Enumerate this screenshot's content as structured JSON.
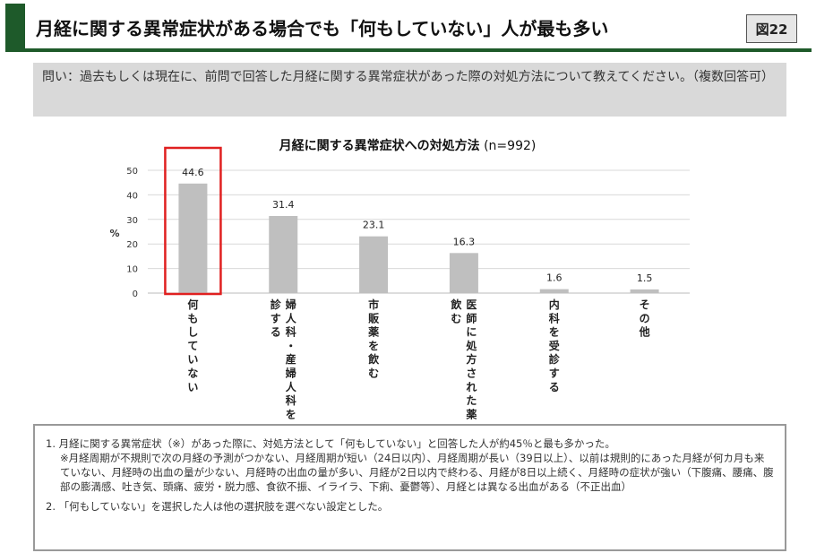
{
  "header": {
    "title": "月経に関する異常症状がある場合でも「何もしていない」人が最も多い",
    "fig_tag": "図22"
  },
  "question": "問い：過去もしくは現在に、前問で回答した月経に関する異常症状があった際の対処方法について教えてください。（複数回答可）",
  "colors": {
    "bar": "#bfbfbf",
    "highlight": "#e02020",
    "header_green": "#1e5a2a"
  },
  "chart_data": {
    "type": "bar",
    "title": "月経に関する異常症状への対処方法",
    "n_label": "(n=992)",
    "ylabel": "%",
    "ylim": [
      0,
      50
    ],
    "yticks": [
      0,
      10,
      20,
      30,
      40,
      50
    ],
    "grid": true,
    "categories": [
      [
        "何もしていない"
      ],
      [
        "婦人科・産婦人科を受",
        "診する"
      ],
      [
        "市販薬を飲む"
      ],
      [
        "医師に処方された薬を",
        "飲む"
      ],
      [
        "内科を受診する"
      ],
      [
        "その他"
      ]
    ],
    "values": [
      44.6,
      31.4,
      23.1,
      16.3,
      1.6,
      1.5
    ],
    "value_labels": [
      "44.6",
      "31.4",
      "23.1",
      "16.3",
      "1.6",
      "1.5"
    ],
    "highlight_index": 0
  },
  "notes": {
    "items": [
      {
        "main": "1. 月経に関する異常症状（※）があった際に、対処方法として「何もしていない」と回答した人が約45％と最も多かった。",
        "sub": "※月経周期が不規則で次の月経の予測がつかない、月経周期が短い（24日以内）、月経周期が長い（39日以上）、以前は規則的にあった月経が何カ月も来ていない、月経時の出血の量が少ない、月経時の出血の量が多い、月経が2日以内で終わる、月経が8日以上続く、月経時の症状が強い（下腹痛、腰痛、腹部の膨満感、吐き気、頭痛、疲労・脱力感、食欲不振、イライラ、下痢、憂鬱等）、月経とは異なる出血がある（不正出血）"
      },
      {
        "main": "2. 「何もしていない」を選択した人は他の選択肢を選べない設定とした。"
      }
    ]
  }
}
